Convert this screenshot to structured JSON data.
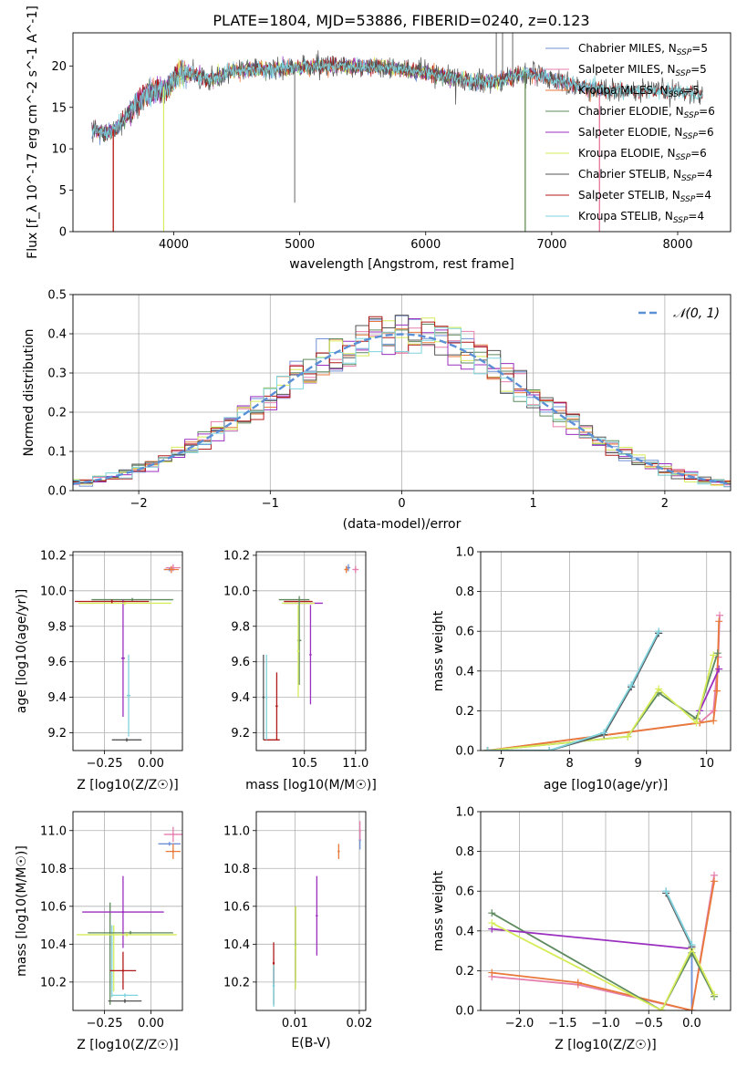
{
  "figure_title": "PLATE=1804, MJD=53886, FIBERID=0240, z=0.123",
  "colors": {
    "Chabrier MILES": "#6f8fd6",
    "Salpeter MILES": "#e57fae",
    "Kroupa MILES": "#e8793a",
    "Chabrier ELODIE": "#5f8a5f",
    "Salpeter ELODIE": "#9b2fbf",
    "Kroupa ELODIE": "#d7ec5a",
    "Chabrier STELIB": "#555555",
    "Salpeter STELIB": "#b01a1a",
    "Kroupa STELIB": "#7fd3dc",
    "normal": "#5b8fd6"
  },
  "chart_data": [
    {
      "id": "spectrum",
      "type": "line",
      "xlabel": "wavelength [Angstrom, rest frame]",
      "ylabel": "Flux [f_λ 10^-17 erg cm^-2 s^-1 A^-1]",
      "xlim": [
        3200,
        8420
      ],
      "ylim": [
        0,
        24
      ],
      "xticks": [
        4000,
        5000,
        6000,
        7000,
        8000
      ],
      "yticks": [
        0,
        5,
        10,
        15,
        20
      ],
      "grid": false,
      "legend_position": "top-right",
      "legend": [
        "Chabrier MILES, N_SSP=5",
        "Salpeter MILES, N_SSP=5",
        "Kroupa MILES, N_SSP=5",
        "Chabrier ELODIE, N_SSP=6",
        "Salpeter ELODIE, N_SSP=6",
        "Kroupa ELODIE, N_SSP=6",
        "Chabrier STELIB, N_SSP=4",
        "Salpeter STELIB, N_SSP=4",
        "Kroupa STELIB, N_SSP=4"
      ],
      "spectrum_profile": [
        [
          3350,
          12.4
        ],
        [
          3450,
          11.8
        ],
        [
          3550,
          12.6
        ],
        [
          3650,
          14.5
        ],
        [
          3750,
          16.5
        ],
        [
          3850,
          17.2
        ],
        [
          3950,
          17.6
        ],
        [
          4050,
          19.5
        ],
        [
          4150,
          19.0
        ],
        [
          4300,
          18.3
        ],
        [
          4450,
          19.4
        ],
        [
          4600,
          19.6
        ],
        [
          4800,
          19.6
        ],
        [
          5000,
          19.8
        ],
        [
          5200,
          20.0
        ],
        [
          5400,
          20.0
        ],
        [
          5600,
          19.9
        ],
        [
          5800,
          19.6
        ],
        [
          6000,
          19.2
        ],
        [
          6200,
          18.6
        ],
        [
          6400,
          18.0
        ],
        [
          6600,
          18.3
        ],
        [
          6800,
          19.2
        ],
        [
          7000,
          18.4
        ],
        [
          7200,
          17.6
        ],
        [
          7400,
          17.1
        ],
        [
          7700,
          16.9
        ],
        [
          8000,
          17.0
        ],
        [
          8200,
          16.7
        ]
      ],
      "dropouts": [
        3520,
        3920,
        6790,
        7380
      ]
    },
    {
      "id": "residuals",
      "type": "line",
      "xlabel": "(data-model)/error",
      "ylabel": "Normed distribution",
      "xlim": [
        -2.5,
        2.5
      ],
      "ylim": [
        0,
        0.5
      ],
      "xticks": [
        -2,
        -1,
        0,
        1,
        2
      ],
      "yticks": [
        0.0,
        0.1,
        0.2,
        0.3,
        0.4,
        0.5
      ],
      "grid": true,
      "legend_position": "top-right",
      "legend": [
        "𝒩(0, 1)"
      ],
      "bin_width": 0.1
    },
    {
      "id": "age_vs_Z",
      "type": "scatter",
      "xlabel": "Z [log10(Z/Z☉)]",
      "ylabel": "age [log10(age/yr)]",
      "xlim": [
        -0.42,
        0.17
      ],
      "ylim": [
        9.1,
        10.22
      ],
      "xticks": [
        -0.25,
        0.0
      ],
      "xticklabels": [
        "−0.25",
        "0.00"
      ],
      "yticks": [
        9.2,
        9.4,
        9.6,
        9.8,
        10.0,
        10.2
      ],
      "grid": true,
      "points": [
        {
          "model": "Chabrier MILES",
          "x": 0.1,
          "y": 10.12,
          "xerr": 0.03,
          "yerr": 0.01
        },
        {
          "model": "Salpeter MILES",
          "x": 0.12,
          "y": 10.13,
          "xerr": 0.04,
          "yerr": 0.02
        },
        {
          "model": "Kroupa MILES",
          "x": 0.11,
          "y": 10.12,
          "xerr": 0.04,
          "yerr": 0.02
        },
        {
          "model": "Chabrier ELODIE",
          "x": -0.1,
          "y": 9.95,
          "xerr": 0.22,
          "yerr": 0.01
        },
        {
          "model": "Salpeter ELODIE",
          "x": -0.15,
          "y": 9.62,
          "xerr": 0.01,
          "yerr": 0.33
        },
        {
          "model": "Kroupa ELODIE",
          "x": -0.14,
          "y": 9.93,
          "xerr": 0.25,
          "yerr": 0.01
        },
        {
          "model": "Chabrier STELIB",
          "x": -0.13,
          "y": 9.16,
          "xerr": 0.08,
          "yerr": 0.01
        },
        {
          "model": "Salpeter STELIB",
          "x": -0.21,
          "y": 9.94,
          "xerr": 0.2,
          "yerr": 0.01
        },
        {
          "model": "Kroupa STELIB",
          "x": -0.12,
          "y": 9.41,
          "xerr": 0.01,
          "yerr": 0.23
        }
      ]
    },
    {
      "id": "age_vs_mass",
      "type": "scatter",
      "xlabel": "mass [log10(M/M☉)]",
      "ylabel": "",
      "xlim": [
        10.03,
        11.1
      ],
      "ylim": [
        9.1,
        10.22
      ],
      "xticks": [
        10.5,
        11.0
      ],
      "xticklabels": [
        "10.5",
        "11.0"
      ],
      "yticks": [
        9.2,
        9.4,
        9.6,
        9.8,
        10.0,
        10.2
      ],
      "grid": true,
      "points": [
        {
          "model": "Chabrier MILES",
          "x": 10.93,
          "y": 10.13,
          "xerr": 0.02,
          "yerr": 0.02
        },
        {
          "model": "Salpeter MILES",
          "x": 11.0,
          "y": 10.12,
          "xerr": 0.03,
          "yerr": 0.02
        },
        {
          "model": "Kroupa MILES",
          "x": 10.91,
          "y": 10.12,
          "xerr": 0.02,
          "yerr": 0.02
        },
        {
          "model": "Chabrier ELODIE",
          "x": 10.45,
          "y": 9.72,
          "xerr": 0.02,
          "yerr": 0.25
        },
        {
          "model": "Salpeter ELODIE",
          "x": 10.56,
          "y": 9.64,
          "xerr": 0.01,
          "yerr": 0.28
        },
        {
          "model": "Kroupa ELODIE",
          "x": 10.44,
          "y": 9.66,
          "xerr": 0.01,
          "yerr": 0.26
        },
        {
          "model": "Chabrier STELIB",
          "x": 10.1,
          "y": 9.4,
          "xerr": 0.01,
          "yerr": 0.24
        },
        {
          "model": "Salpeter STELIB",
          "x": 10.23,
          "y": 9.35,
          "xerr": 0.01,
          "yerr": 0.19
        },
        {
          "model": "Kroupa STELIB",
          "x": 10.13,
          "y": 9.4,
          "xerr": 0.01,
          "yerr": 0.24
        }
      ],
      "extra_hbars": [
        {
          "model": "Chabrier ELODIE",
          "y": 9.95,
          "x0": 10.25,
          "x1": 10.55
        },
        {
          "model": "Salpeter ELODIE",
          "y": 9.93,
          "x0": 10.3,
          "x1": 10.68
        },
        {
          "model": "Kroupa ELODIE",
          "y": 9.93,
          "x0": 10.28,
          "x1": 10.6
        },
        {
          "model": "Salpeter STELIB",
          "y": 9.94,
          "x0": 10.3,
          "x1": 10.58
        },
        {
          "model": "Salpeter STELIB",
          "y": 9.16,
          "x0": 10.1,
          "x1": 10.26
        }
      ]
    },
    {
      "id": "massweight_vs_age",
      "type": "line",
      "xlabel": "age [log10(age/yr)]",
      "ylabel": "mass weight",
      "xlim": [
        6.7,
        10.35
      ],
      "ylim": [
        0,
        1
      ],
      "xticks": [
        7,
        8,
        9,
        10
      ],
      "yticks": [
        0.0,
        0.2,
        0.4,
        0.6,
        0.8,
        1.0
      ],
      "grid": true,
      "series": [
        {
          "model": "Chabrier MILES",
          "x": [
            6.8,
            7.7,
            8.5,
            8.9,
            9.3
          ],
          "y": [
            0.0,
            0.0,
            0.08,
            0.32,
            0.59
          ]
        },
        {
          "model": "Salpeter MILES",
          "x": [
            6.8,
            9.9,
            10.1,
            10.17,
            10.19
          ],
          "y": [
            0.0,
            0.14,
            0.2,
            0.47,
            0.68
          ]
        },
        {
          "model": "Kroupa MILES",
          "x": [
            6.8,
            9.9,
            10.1,
            10.15,
            10.18
          ],
          "y": [
            0.0,
            0.14,
            0.15,
            0.3,
            0.65
          ]
        },
        {
          "model": "Chabrier ELODIE",
          "x": [
            6.8,
            8.85,
            9.3,
            9.85,
            10.16
          ],
          "y": [
            0.0,
            0.07,
            0.29,
            0.16,
            0.49
          ]
        },
        {
          "model": "Salpeter ELODIE",
          "x": [
            9.9,
            10.18
          ],
          "y": [
            0.2,
            0.41
          ]
        },
        {
          "model": "Kroupa ELODIE",
          "x": [
            6.8,
            8.85,
            9.3,
            9.85,
            10.1
          ],
          "y": [
            0.0,
            0.07,
            0.31,
            0.14,
            0.48
          ]
        },
        {
          "model": "Chabrier STELIB",
          "x": [
            6.8,
            7.7,
            8.5,
            8.9,
            9.3
          ],
          "y": [
            0.0,
            0.0,
            0.08,
            0.32,
            0.59
          ]
        },
        {
          "model": "Kroupa STELIB",
          "x": [
            6.8,
            7.7,
            8.5,
            8.9,
            9.3
          ],
          "y": [
            0.0,
            0.0,
            0.09,
            0.33,
            0.6
          ]
        }
      ]
    },
    {
      "id": "mass_vs_Z",
      "type": "scatter",
      "xlabel": "Z [log10(Z/Z☉)]",
      "ylabel": "mass [log10(M/M☉)]",
      "xlim": [
        -0.42,
        0.17
      ],
      "ylim": [
        10.05,
        11.1
      ],
      "xticks": [
        -0.25,
        0.0
      ],
      "xticklabels": [
        "−0.25",
        "0.00"
      ],
      "yticks": [
        10.2,
        10.4,
        10.6,
        10.8,
        11.0
      ],
      "grid": true,
      "points": [
        {
          "model": "Chabrier MILES",
          "x": 0.1,
          "y": 10.93,
          "xerr": 0.06,
          "yerr": 0.01
        },
        {
          "model": "Salpeter MILES",
          "x": 0.12,
          "y": 10.98,
          "xerr": 0.05,
          "yerr": 0.04
        },
        {
          "model": "Kroupa MILES",
          "x": 0.12,
          "y": 10.89,
          "xerr": 0.04,
          "yerr": 0.04
        },
        {
          "model": "Chabrier ELODIE",
          "x": -0.11,
          "y": 10.46,
          "xerr": 0.23,
          "yerr": 0.01
        },
        {
          "model": "Salpeter ELODIE",
          "x": -0.15,
          "y": 10.57,
          "xerr": 0.22,
          "yerr": 0.19
        },
        {
          "model": "Kroupa ELODIE",
          "x": -0.13,
          "y": 10.45,
          "xerr": 0.27,
          "yerr": 0.01
        },
        {
          "model": "Chabrier STELIB",
          "x": -0.14,
          "y": 10.1,
          "xerr": 0.09,
          "yerr": 0.01
        },
        {
          "model": "Salpeter STELIB",
          "x": -0.15,
          "y": 10.26,
          "xerr": 0.07,
          "yerr": 0.1
        },
        {
          "model": "Kroupa STELIB",
          "x": -0.14,
          "y": 10.13,
          "xerr": 0.07,
          "yerr": 0.01
        }
      ],
      "extra_vbars": [
        {
          "model": "Chabrier ELODIE",
          "x": -0.22,
          "y0": 10.08,
          "y1": 10.62
        },
        {
          "model": "Kroupa ELODIE",
          "x": -0.2,
          "y0": 10.15,
          "y1": 10.5
        },
        {
          "model": "Kroupa STELIB",
          "x": -0.21,
          "y0": 10.12,
          "y1": 10.5
        }
      ]
    },
    {
      "id": "mass_vs_EBV",
      "type": "scatter",
      "xlabel": "E(B-V)",
      "ylabel": "",
      "xlim": [
        0.004,
        0.021
      ],
      "ylim": [
        10.05,
        11.1
      ],
      "xticks": [
        0.01,
        0.02
      ],
      "xticklabels": [
        "0.01",
        "0.02"
      ],
      "yticks": [
        10.2,
        10.4,
        10.6,
        10.8,
        11.0
      ],
      "grid": true,
      "points": [
        {
          "model": "Chabrier MILES",
          "x": 0.0201,
          "y": 10.95,
          "xerr": 0,
          "yerr": 0.05
        },
        {
          "model": "Salpeter MILES",
          "x": 0.0201,
          "y": 11.0,
          "xerr": 0,
          "yerr": 0.05
        },
        {
          "model": "Kroupa MILES",
          "x": 0.0168,
          "y": 10.89,
          "xerr": 0,
          "yerr": 0.04
        },
        {
          "model": "Chabrier ELODIE",
          "x": 0.0101,
          "y": 10.4,
          "xerr": 0,
          "yerr": 0.2
        },
        {
          "model": "Salpeter ELODIE",
          "x": 0.0134,
          "y": 10.55,
          "xerr": 0,
          "yerr": 0.21
        },
        {
          "model": "Kroupa ELODIE",
          "x": 0.0101,
          "y": 10.38,
          "xerr": 0,
          "yerr": 0.22
        },
        {
          "model": "Chabrier STELIB",
          "x": 0.0067,
          "y": 10.18,
          "xerr": 0,
          "yerr": 0.1
        },
        {
          "model": "Salpeter STELIB",
          "x": 0.0067,
          "y": 10.3,
          "xerr": 0,
          "yerr": 0.11
        },
        {
          "model": "Kroupa STELIB",
          "x": 0.0067,
          "y": 10.18,
          "xerr": 0,
          "yerr": 0.11
        }
      ]
    },
    {
      "id": "massweight_vs_Z",
      "type": "line",
      "xlabel": "Z [log10(Z/Z☉)]",
      "ylabel": "mass weight",
      "xlim": [
        -2.45,
        0.45
      ],
      "ylim": [
        0,
        1
      ],
      "xticks": [
        -2.0,
        -1.5,
        -1.0,
        -0.5,
        0.0
      ],
      "xticklabels": [
        "−2.0",
        "−1.5",
        "−1.0",
        "−0.5",
        "0.0"
      ],
      "yticks": [
        0.0,
        0.2,
        0.4,
        0.6,
        0.8,
        1.0
      ],
      "grid": true,
      "series": [
        {
          "model": "Chabrier MILES",
          "x": [
            -0.3,
            0.0,
            0.0
          ],
          "y": [
            0.6,
            0.33,
            0.0
          ]
        },
        {
          "model": "Salpeter MILES",
          "x": [
            -2.32,
            -1.32,
            0.0,
            0.26
          ],
          "y": [
            0.17,
            0.13,
            0.0,
            0.68
          ]
        },
        {
          "model": "Kroupa MILES",
          "x": [
            -2.32,
            -1.32,
            0.0,
            0.26
          ],
          "y": [
            0.19,
            0.14,
            0.0,
            0.65
          ]
        },
        {
          "model": "Chabrier ELODIE",
          "x": [
            -2.32,
            -0.35,
            0.0,
            0.26
          ],
          "y": [
            0.49,
            0.0,
            0.29,
            0.07
          ]
        },
        {
          "model": "Salpeter ELODIE",
          "x": [
            -2.32,
            0.0
          ],
          "y": [
            0.41,
            0.31
          ]
        },
        {
          "model": "Kroupa ELODIE",
          "x": [
            -2.32,
            -0.35,
            0.0,
            0.26
          ],
          "y": [
            0.44,
            0.0,
            0.31,
            0.08
          ]
        },
        {
          "model": "Chabrier STELIB",
          "x": [
            -0.3,
            0.0
          ],
          "y": [
            0.59,
            0.32
          ]
        },
        {
          "model": "Kroupa STELIB",
          "x": [
            -0.3,
            0.0
          ],
          "y": [
            0.6,
            0.33
          ]
        }
      ]
    }
  ]
}
